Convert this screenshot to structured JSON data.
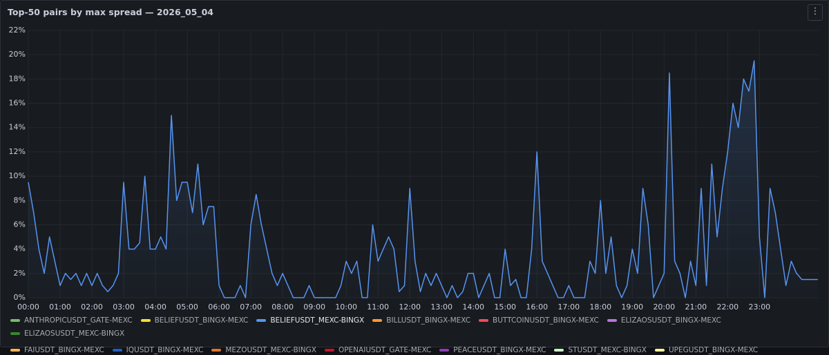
{
  "chart_data": {
    "type": "line",
    "title": "Top-50 pairs by max spread — 2026_05_04",
    "x": [
      0,
      10,
      20,
      30,
      40,
      50,
      60,
      70,
      80,
      90,
      100,
      110,
      120,
      130,
      140,
      150,
      160,
      170,
      180,
      190,
      200,
      210,
      220,
      230,
      240,
      250,
      260,
      270,
      280,
      290,
      300,
      310,
      320,
      330,
      340,
      350,
      360,
      370,
      380,
      390,
      400,
      410,
      420,
      430,
      440,
      450,
      460,
      470,
      480,
      490,
      500,
      510,
      520,
      530,
      540,
      550,
      560,
      570,
      580,
      590,
      600,
      610,
      620,
      630,
      640,
      650,
      660,
      670,
      680,
      690,
      700,
      710,
      720,
      730,
      740,
      750,
      760,
      770,
      780,
      790,
      800,
      810,
      820,
      830,
      840,
      850,
      860,
      870,
      880,
      890,
      900,
      910,
      920,
      930,
      940,
      950,
      960,
      970,
      980,
      990,
      1000,
      1010,
      1020,
      1030,
      1040,
      1050,
      1060,
      1070,
      1080,
      1090,
      1100,
      1110,
      1120,
      1130,
      1140,
      1150,
      1160,
      1170,
      1180,
      1190,
      1200,
      1210,
      1220,
      1230,
      1240,
      1250,
      1260,
      1270,
      1280,
      1290,
      1300,
      1310,
      1320,
      1330,
      1340,
      1350,
      1360,
      1370,
      1380,
      1390,
      1400,
      1410,
      1420,
      1430,
      1440,
      1450,
      1460,
      1470,
      1480,
      1490
    ],
    "series": [
      {
        "name": "ANTHROPICUSDT_GATE-MEXC",
        "color": "#73bf69"
      },
      {
        "name": "BELIEFUSDT_BINGX-MEXC",
        "color": "#fade2a"
      },
      {
        "name": "BELIEFUSDT_MEXC-BINGX",
        "color": "#5794f2",
        "values": [
          9.5,
          7,
          4,
          2,
          5,
          3,
          1,
          2,
          1.5,
          2,
          1,
          2,
          1,
          2,
          1,
          0.5,
          1,
          2,
          9.5,
          4,
          4,
          4.5,
          10,
          4,
          4,
          5,
          4,
          15,
          8,
          9.5,
          9.5,
          7,
          11,
          6,
          7.5,
          7.5,
          1,
          0,
          0,
          0,
          1,
          0,
          6,
          8.5,
          6,
          4,
          2,
          1,
          2,
          1,
          0,
          0,
          0,
          1,
          0,
          0,
          0,
          0,
          0,
          1,
          3,
          2,
          3,
          0,
          0,
          6,
          3,
          4,
          5,
          4,
          0.5,
          1,
          9,
          3,
          0.5,
          2,
          1,
          2,
          1,
          0,
          1,
          0,
          0.5,
          2,
          2,
          0,
          1,
          2,
          0,
          0,
          4,
          1,
          1.5,
          0,
          0,
          4,
          12,
          3,
          2,
          1,
          0,
          0,
          1,
          0,
          0,
          0,
          3,
          2,
          8,
          2,
          5,
          1,
          0,
          1,
          4,
          2,
          9,
          6,
          0,
          1,
          2,
          18.5,
          3,
          2,
          0,
          3,
          1,
          9,
          1,
          11,
          5,
          9,
          12,
          16,
          14,
          18,
          17,
          19.5,
          5,
          0,
          9,
          7,
          4,
          1,
          3,
          2,
          1.5,
          1.5,
          1.5,
          1.5
        ]
      },
      {
        "name": "BILLUSDT_BINGX-MEXC",
        "color": "#ff9830"
      },
      {
        "name": "BUTTCOINUSDT_BINGX-MEXC",
        "color": "#f2495c"
      },
      {
        "name": "ELIZAOSUSDT_BINGX-MEXC",
        "color": "#b877d9"
      },
      {
        "name": "ELIZAOSUSDT_MEXC-BINGX",
        "color": "#37872d"
      },
      {
        "name": "FAIUSDT_BINGX-MEXC",
        "color": "#ffb357"
      },
      {
        "name": "IQUSDT_BINGX-MEXC",
        "color": "#1f60c4"
      },
      {
        "name": "MEZOUSDT_MEXC-BINGX",
        "color": "#e0752d"
      },
      {
        "name": "OPENAIUSDT_GATE-MEXC",
        "color": "#c4162a"
      },
      {
        "name": "PEACEUSDT_BINGX-MEXC",
        "color": "#8f3bb8"
      },
      {
        "name": "STUSDT_MEXC-BINGX",
        "color": "#c8f2c2"
      },
      {
        "name": "UPEGUSDT_BINGX-MEXC",
        "color": "#fff899"
      }
    ],
    "xlim": [
      0,
      1493
    ],
    "xticks": [
      {
        "value": 0,
        "label": "00:00"
      },
      {
        "value": 60,
        "label": "01:00"
      },
      {
        "value": 120,
        "label": "02:00"
      },
      {
        "value": 180,
        "label": "03:00"
      },
      {
        "value": 240,
        "label": "04:00"
      },
      {
        "value": 300,
        "label": "05:00"
      },
      {
        "value": 360,
        "label": "06:00"
      },
      {
        "value": 420,
        "label": "07:00"
      },
      {
        "value": 480,
        "label": "08:00"
      },
      {
        "value": 540,
        "label": "09:00"
      },
      {
        "value": 600,
        "label": "10:00"
      },
      {
        "value": 660,
        "label": "11:00"
      },
      {
        "value": 720,
        "label": "12:00"
      },
      {
        "value": 780,
        "label": "13:00"
      },
      {
        "value": 840,
        "label": "14:00"
      },
      {
        "value": 900,
        "label": "15:00"
      },
      {
        "value": 960,
        "label": "16:00"
      },
      {
        "value": 1020,
        "label": "17:00"
      },
      {
        "value": 1080,
        "label": "18:00"
      },
      {
        "value": 1140,
        "label": "19:00"
      },
      {
        "value": 1200,
        "label": "20:00"
      },
      {
        "value": 1260,
        "label": "21:00"
      },
      {
        "value": 1320,
        "label": "22:00"
      },
      {
        "value": 1380,
        "label": "23:00"
      }
    ],
    "ylim": [
      0,
      22
    ],
    "yticks": [
      {
        "value": 0,
        "label": "0%"
      },
      {
        "value": 2,
        "label": "2%"
      },
      {
        "value": 4,
        "label": "4%"
      },
      {
        "value": 6,
        "label": "6%"
      },
      {
        "value": 8,
        "label": "8%"
      },
      {
        "value": 10,
        "label": "10%"
      },
      {
        "value": 12,
        "label": "12%"
      },
      {
        "value": 14,
        "label": "14%"
      },
      {
        "value": 16,
        "label": "16%"
      },
      {
        "value": 18,
        "label": "18%"
      },
      {
        "value": 20,
        "label": "20%"
      },
      {
        "value": 22,
        "label": "22%"
      }
    ],
    "grid": true
  }
}
